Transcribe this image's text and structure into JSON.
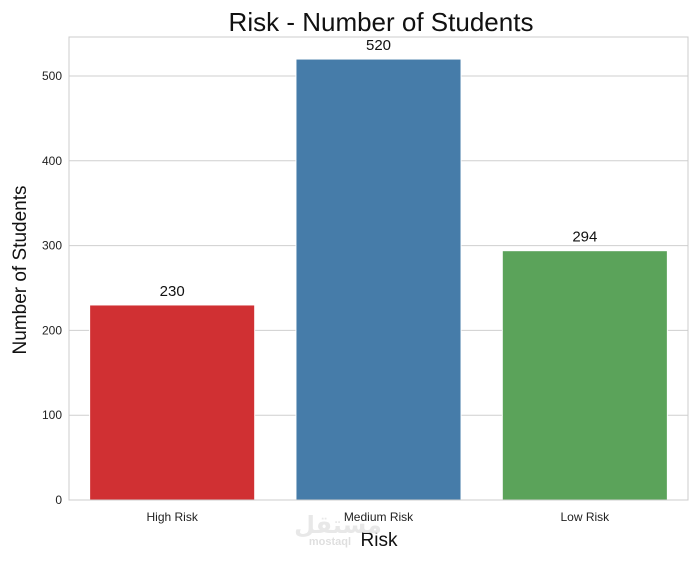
{
  "chart_data": {
    "type": "bar",
    "title": "Risk - Number of Students",
    "xlabel": "Risk",
    "ylabel": "Number of Students",
    "categories": [
      "High Risk",
      "Medium Risk",
      "Low Risk"
    ],
    "values": [
      230,
      520,
      294
    ],
    "data_labels": [
      "230",
      "520",
      "294"
    ],
    "colors": [
      "#d03033",
      "#467ca9",
      "#5ba35a"
    ],
    "ylim": [
      0,
      546
    ],
    "yticks": [
      0,
      100,
      200,
      300,
      400,
      500
    ],
    "grid": "horizontal",
    "legend": "none"
  },
  "watermark": {
    "arabic": "مستقل",
    "latin": "mostaql"
  }
}
